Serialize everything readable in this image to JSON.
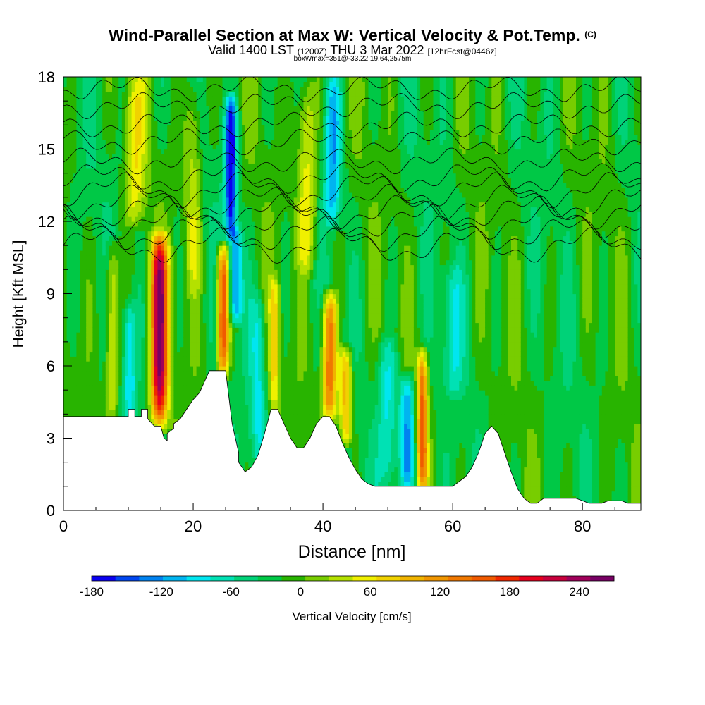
{
  "titles": {
    "main": "Wind-Parallel Section at Max W: Vertical Velocity & Pot.Temp.",
    "copyright": "(C)",
    "valid_prefix": "Valid 1400 LST",
    "valid_utc": "(1200Z)",
    "valid_date": "THU 3 Mar 2022",
    "forecast": "[12hrFcst@0446z]",
    "box": "boxWmax=351@-33.22,19.64,2575m"
  },
  "colors": {
    "colorbar": [
      "#0a00f0",
      "#0046f0",
      "#0082f0",
      "#00b4f0",
      "#00e6f0",
      "#00e1b4",
      "#00d278",
      "#00c846",
      "#28b400",
      "#78cd00",
      "#b4e100",
      "#f0f000",
      "#f0d200",
      "#f0b400",
      "#f09600",
      "#f07800",
      "#f05a00",
      "#f02800",
      "#e6001e",
      "#c8003c",
      "#a0005a",
      "#780064"
    ],
    "terrain": "#ffffff",
    "contour": "#000000"
  },
  "chart_data": {
    "type": "heatmap",
    "xlabel": "Distance [nm]",
    "ylabel": "Height [Kft MSL]",
    "xlim": [
      0,
      89
    ],
    "ylim": [
      0,
      18
    ],
    "x_ticks": [
      0,
      20,
      40,
      60,
      80
    ],
    "y_ticks": [
      0,
      3,
      6,
      9,
      12,
      15,
      18
    ],
    "colorbar": {
      "label": "Vertical Velocity [cm/s]",
      "min": -180,
      "max": 270,
      "step": 20,
      "tick_values": [
        -180,
        -120,
        -60,
        0,
        60,
        120,
        180,
        240
      ]
    },
    "terrain_profile": {
      "x": [
        0,
        10,
        10,
        11,
        11,
        12,
        12,
        13,
        13,
        14,
        15,
        15.5,
        16,
        16,
        17,
        17,
        18,
        19,
        20,
        21,
        21.5,
        22,
        22.5,
        23,
        23,
        24,
        25,
        25,
        26,
        27,
        27,
        28,
        29,
        30,
        31,
        32,
        33,
        34,
        35,
        36,
        37,
        38,
        39,
        40,
        41,
        42,
        43,
        44,
        45,
        46,
        47,
        48,
        49,
        50,
        51,
        52,
        53,
        54,
        55,
        56,
        57,
        58,
        59,
        60,
        61,
        62,
        63,
        64,
        65,
        66,
        67,
        68,
        69,
        70,
        71,
        72,
        73,
        74,
        75,
        76,
        77,
        78,
        79,
        80,
        81,
        82,
        83,
        84,
        85,
        86,
        87,
        88,
        89
      ],
      "y": [
        3.9,
        3.9,
        4.2,
        4.2,
        3.9,
        3.9,
        4.2,
        4.2,
        3.8,
        3.5,
        3.5,
        3.0,
        2.9,
        3.2,
        3.4,
        3.6,
        3.8,
        4.2,
        4.6,
        4.9,
        5.2,
        5.5,
        5.8,
        5.8,
        5.8,
        5.8,
        5.8,
        5.8,
        3.6,
        2.4,
        2.0,
        1.6,
        1.8,
        2.3,
        3.2,
        4.2,
        4.2,
        3.6,
        3.0,
        2.6,
        2.6,
        3.0,
        3.6,
        3.9,
        3.9,
        3.5,
        2.8,
        2.2,
        1.7,
        1.3,
        1.1,
        1.0,
        1.0,
        1.0,
        1.0,
        1.0,
        1.0,
        1.0,
        1.0,
        1.0,
        1.0,
        1.0,
        1.0,
        1.0,
        1.2,
        1.4,
        1.8,
        2.4,
        3.2,
        3.5,
        3.2,
        2.4,
        1.6,
        0.9,
        0.5,
        0.3,
        0.3,
        0.5,
        0.5,
        0.5,
        0.5,
        0.5,
        0.5,
        0.4,
        0.3,
        0.3,
        0.3,
        0.4,
        0.4,
        0.4,
        0.3,
        0.3,
        0.3
      ]
    },
    "background_w": -20,
    "updraft_cores": [
      {
        "x": 7.5,
        "bottom": 3.9,
        "top": 11.0,
        "w": 70,
        "halfwidth": 1.0
      },
      {
        "x": 14.8,
        "bottom": 3.6,
        "top": 11.3,
        "w": 245,
        "halfwidth": 1.3
      },
      {
        "x": 24.6,
        "bottom": 5.8,
        "top": 10.8,
        "w": 180,
        "halfwidth": 0.9
      },
      {
        "x": 32.5,
        "bottom": 4.2,
        "top": 9.5,
        "w": 70,
        "halfwidth": 0.8
      },
      {
        "x": 41.0,
        "bottom": 3.9,
        "top": 8.9,
        "w": 150,
        "halfwidth": 1.1
      },
      {
        "x": 43.5,
        "bottom": 3.0,
        "top": 6.5,
        "w": 110,
        "halfwidth": 1.0
      },
      {
        "x": 55.3,
        "bottom": 1.0,
        "top": 6.5,
        "w": 150,
        "halfwidth": 0.8
      },
      {
        "x": 37.5,
        "bottom": 10.0,
        "top": 18.0,
        "w": 70,
        "halfwidth": 1.5
      },
      {
        "x": 11.0,
        "bottom": 12.0,
        "top": 18.0,
        "w": 60,
        "halfwidth": 1.5
      },
      {
        "x": 20.0,
        "bottom": 9.0,
        "top": 18.0,
        "w": 50,
        "halfwidth": 1.3
      }
    ],
    "downdraft_cores": [
      {
        "x": 25.8,
        "bottom": 11.5,
        "top": 17.0,
        "w": -180,
        "halfwidth": 0.9
      },
      {
        "x": 26.5,
        "bottom": 8.0,
        "top": 11.5,
        "w": -120,
        "halfwidth": 1.0
      },
      {
        "x": 53.0,
        "bottom": 1.0,
        "top": 5.5,
        "w": -120,
        "halfwidth": 1.2
      },
      {
        "x": 50.0,
        "bottom": 1.0,
        "top": 7.0,
        "w": -80,
        "halfwidth": 1.5
      },
      {
        "x": 41.5,
        "bottom": 12.0,
        "top": 18.0,
        "w": -100,
        "halfwidth": 1.2
      },
      {
        "x": 10.2,
        "bottom": 4.0,
        "top": 8.5,
        "w": -80,
        "halfwidth": 0.9
      },
      {
        "x": 30.0,
        "bottom": 2.0,
        "top": 9.0,
        "w": -70,
        "halfwidth": 1.2
      },
      {
        "x": 60.0,
        "bottom": 5.0,
        "top": 10.0,
        "w": -60,
        "halfwidth": 1.5
      }
    ],
    "isentropes": [
      {
        "label": "",
        "base": 11.0,
        "wave": 0.5
      },
      {
        "label": "",
        "base": 11.5,
        "wave": 0.5
      },
      {
        "label": "",
        "base": 12.0,
        "wave": 0.5
      },
      {
        "label": "",
        "base": 12.4,
        "wave": 0.5
      },
      {
        "label": "",
        "base": 12.8,
        "wave": 0.5
      },
      {
        "label": "",
        "base": 13.3,
        "wave": 0.5
      },
      {
        "label": "",
        "base": 13.8,
        "wave": 0.4
      },
      {
        "label": "",
        "base": 14.5,
        "wave": 0.3
      },
      {
        "label": "",
        "base": 15.3,
        "wave": 0.3
      },
      {
        "label": "",
        "base": 16.0,
        "wave": 0.3
      },
      {
        "label": "",
        "base": 16.8,
        "wave": 0.3
      },
      {
        "label": "",
        "base": 17.5,
        "wave": 0.3
      }
    ]
  }
}
